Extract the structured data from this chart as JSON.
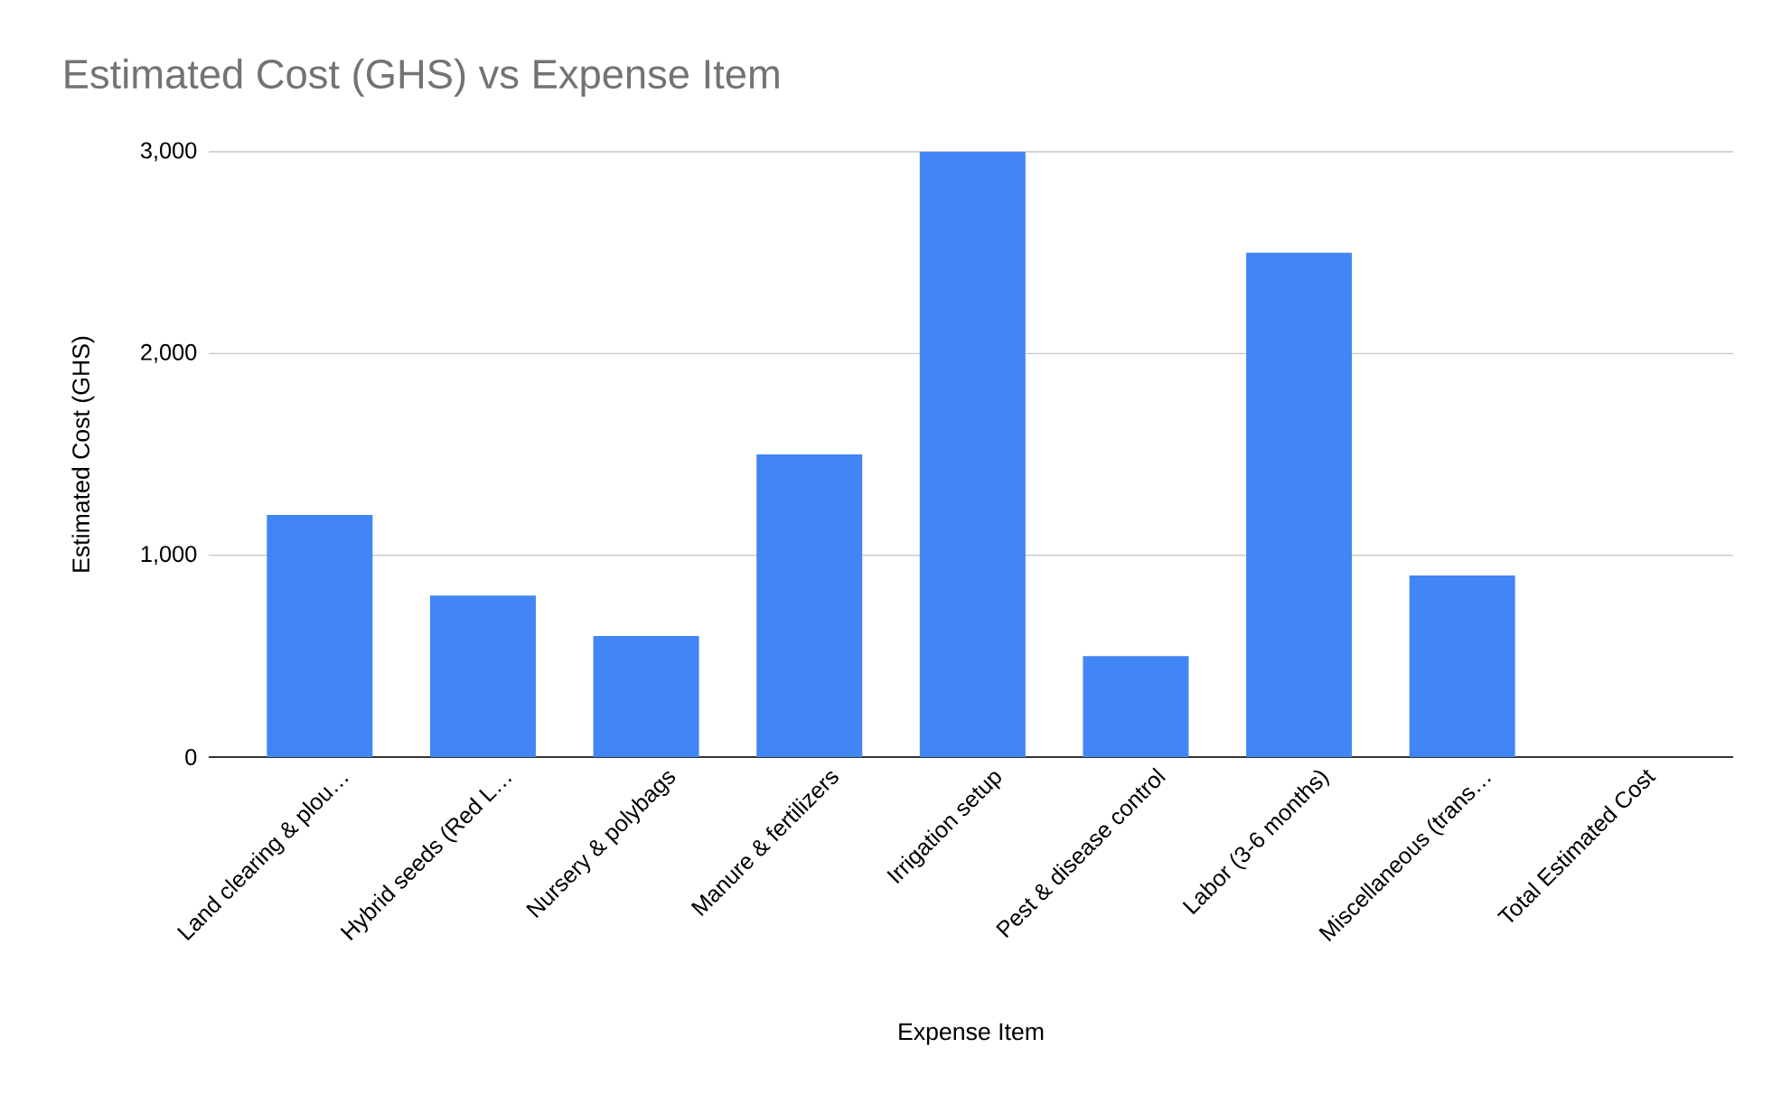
{
  "chart_data": {
    "type": "bar",
    "title": "Estimated Cost (GHS) vs Expense Item",
    "xlabel": "Expense Item",
    "ylabel": "Estimated Cost (GHS)",
    "categories": [
      "Land clearing & plou…",
      "Hybrid seeds (Red L…",
      "Nursery & polybags",
      "Manure & fertilizers",
      "Irrigation setup",
      "Pest & disease control",
      "Labor (3-6 months)",
      "Miscellaneous (trans…",
      "Total Estimated Cost"
    ],
    "values": [
      1200,
      800,
      600,
      1500,
      3000,
      500,
      2500,
      900,
      null
    ],
    "color": "#4285f4",
    "ylim": [
      0,
      3000
    ],
    "yticks": [
      0,
      {
        "value": 1000,
        "label": "1,000"
      },
      {
        "value": 2000,
        "label": "2,000"
      },
      {
        "value": 3000,
        "label": "3,000"
      }
    ],
    "grid": "y"
  }
}
